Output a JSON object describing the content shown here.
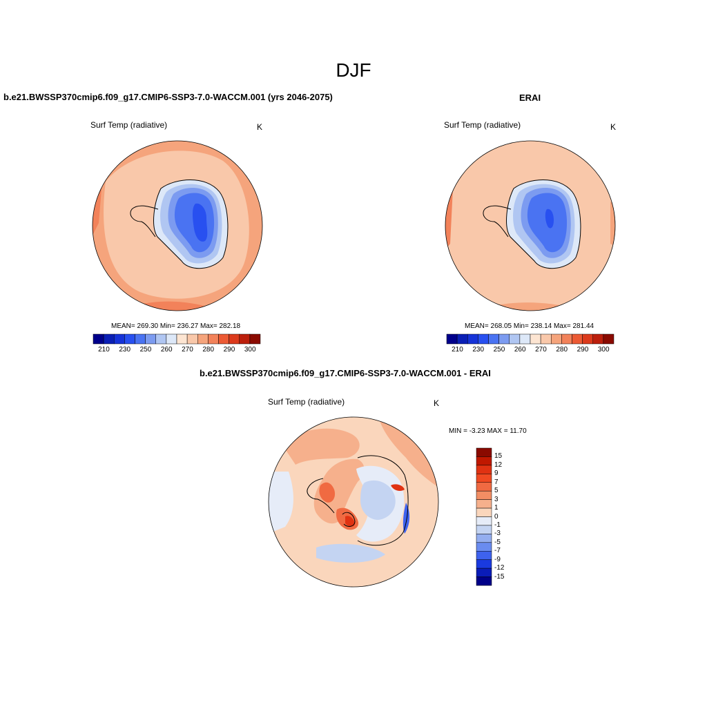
{
  "season": "DJF",
  "panels": [
    {
      "title": "b.e21.BWSSP370cmip6.f09_g17.CMIP6-SSP3-7.0-WACCM.001 (yrs 2046-2075)",
      "variable": "Surf Temp (radiative)",
      "units": "K",
      "stats": "MEAN= 269.30  Min= 236.27  Max= 282.18"
    },
    {
      "title": "ERAI",
      "variable": "Surf Temp (radiative)",
      "units": "K",
      "stats": "MEAN= 268.05  Min= 238.14  Max= 281.44"
    },
    {
      "title": "b.e21.BWSSP370cmip6.f09_g17.CMIP6-SSP3-7.0-WACCM.001 - ERAI",
      "variable": "Surf Temp (radiative)",
      "units": "K",
      "stats": "MIN =  -3.23 MAX =  11.70"
    }
  ],
  "abs_colorbar": {
    "colors": [
      "#00008b",
      "#0a1fb5",
      "#1633d8",
      "#2850f0",
      "#4a73f2",
      "#7c9bf0",
      "#b0c6f2",
      "#dde8f8",
      "#fde5d2",
      "#f9c8aa",
      "#f5a47c",
      "#f2825a",
      "#ec5a34",
      "#dc3a1c",
      "#bc1f0c",
      "#8a0a00"
    ],
    "labels": [
      "210",
      "230",
      "250",
      "260",
      "270",
      "280",
      "290",
      "300"
    ]
  },
  "diff_colorbar": {
    "colors": [
      "#8a0a00",
      "#c01800",
      "#e03212",
      "#f04a22",
      "#f06a42",
      "#f28e64",
      "#f6b08c",
      "#fad6bc",
      "#e6ecf8",
      "#c4d4f2",
      "#94aef0",
      "#6a8cf0",
      "#3e62ee",
      "#1a3ae0",
      "#0a1cb8",
      "#000088"
    ],
    "labels": [
      "15",
      "12",
      "9",
      "7",
      "5",
      "3",
      "1",
      "0",
      "-1",
      "-3",
      "-5",
      "-7",
      "-9",
      "-12",
      "-15"
    ]
  }
}
